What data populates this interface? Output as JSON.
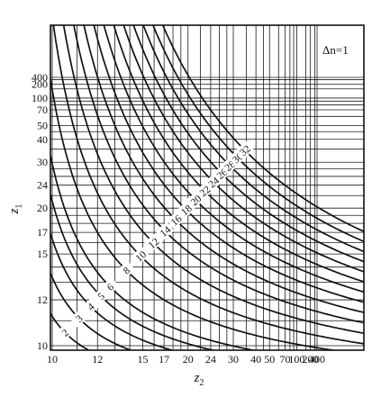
{
  "chart_data": {
    "type": "line",
    "annotation": "Δn=1",
    "xlabel": "z",
    "xlabel_subscript": "2",
    "ylabel": "z",
    "ylabel_subscript": "1",
    "x_ticks": [
      10,
      12,
      15,
      17,
      20,
      24,
      30,
      40,
      50,
      70,
      100,
      200,
      400
    ],
    "x_tick_labels": [
      "10",
      "12",
      "15",
      "17",
      "20",
      "24",
      "30",
      "40",
      "50",
      "70",
      "100",
      "200",
      "400"
    ],
    "y_ticks": [
      10,
      12,
      15,
      17,
      20,
      24,
      30,
      40,
      50,
      70,
      100,
      200,
      400
    ],
    "y_tick_labels": [
      "10",
      "12",
      "15",
      "17",
      "20",
      "24",
      "30",
      "40",
      "50",
      "70",
      "100",
      "200",
      "400"
    ],
    "x_grid": [
      10,
      11,
      12,
      13,
      14,
      15,
      16,
      17,
      18,
      19,
      20,
      22,
      24,
      26,
      28,
      30,
      35,
      40,
      45,
      50,
      60,
      70,
      80,
      90,
      100,
      150,
      200,
      300,
      400
    ],
    "y_grid": [
      10,
      11,
      12,
      13,
      14,
      15,
      16,
      17,
      18,
      19,
      20,
      22,
      24,
      26,
      28,
      30,
      35,
      40,
      45,
      50,
      60,
      70,
      80,
      90,
      100,
      150,
      200,
      300,
      400
    ],
    "grid": true,
    "x_scale": "reciprocal",
    "y_scale": "reciprocal",
    "series": [
      {
        "label": "1",
        "value": 1
      },
      {
        "label": "2",
        "value": 2
      },
      {
        "label": "3",
        "value": 3
      },
      {
        "label": "4",
        "value": 4
      },
      {
        "label": "5",
        "value": 5
      },
      {
        "label": "6",
        "value": 6
      },
      {
        "label": "8",
        "value": 8
      },
      {
        "label": "10",
        "value": 10
      },
      {
        "label": "12",
        "value": 12
      },
      {
        "label": "14",
        "value": 14
      },
      {
        "label": "16",
        "value": 16
      },
      {
        "label": "18",
        "value": 18
      },
      {
        "label": "20",
        "value": 20
      },
      {
        "label": "22",
        "value": 22
      },
      {
        "label": "24",
        "value": 24
      },
      {
        "label": "26",
        "value": 26
      },
      {
        "label": "28",
        "value": 28
      },
      {
        "label": "30",
        "value": 30
      },
      {
        "label": "32",
        "value": 32
      }
    ]
  }
}
